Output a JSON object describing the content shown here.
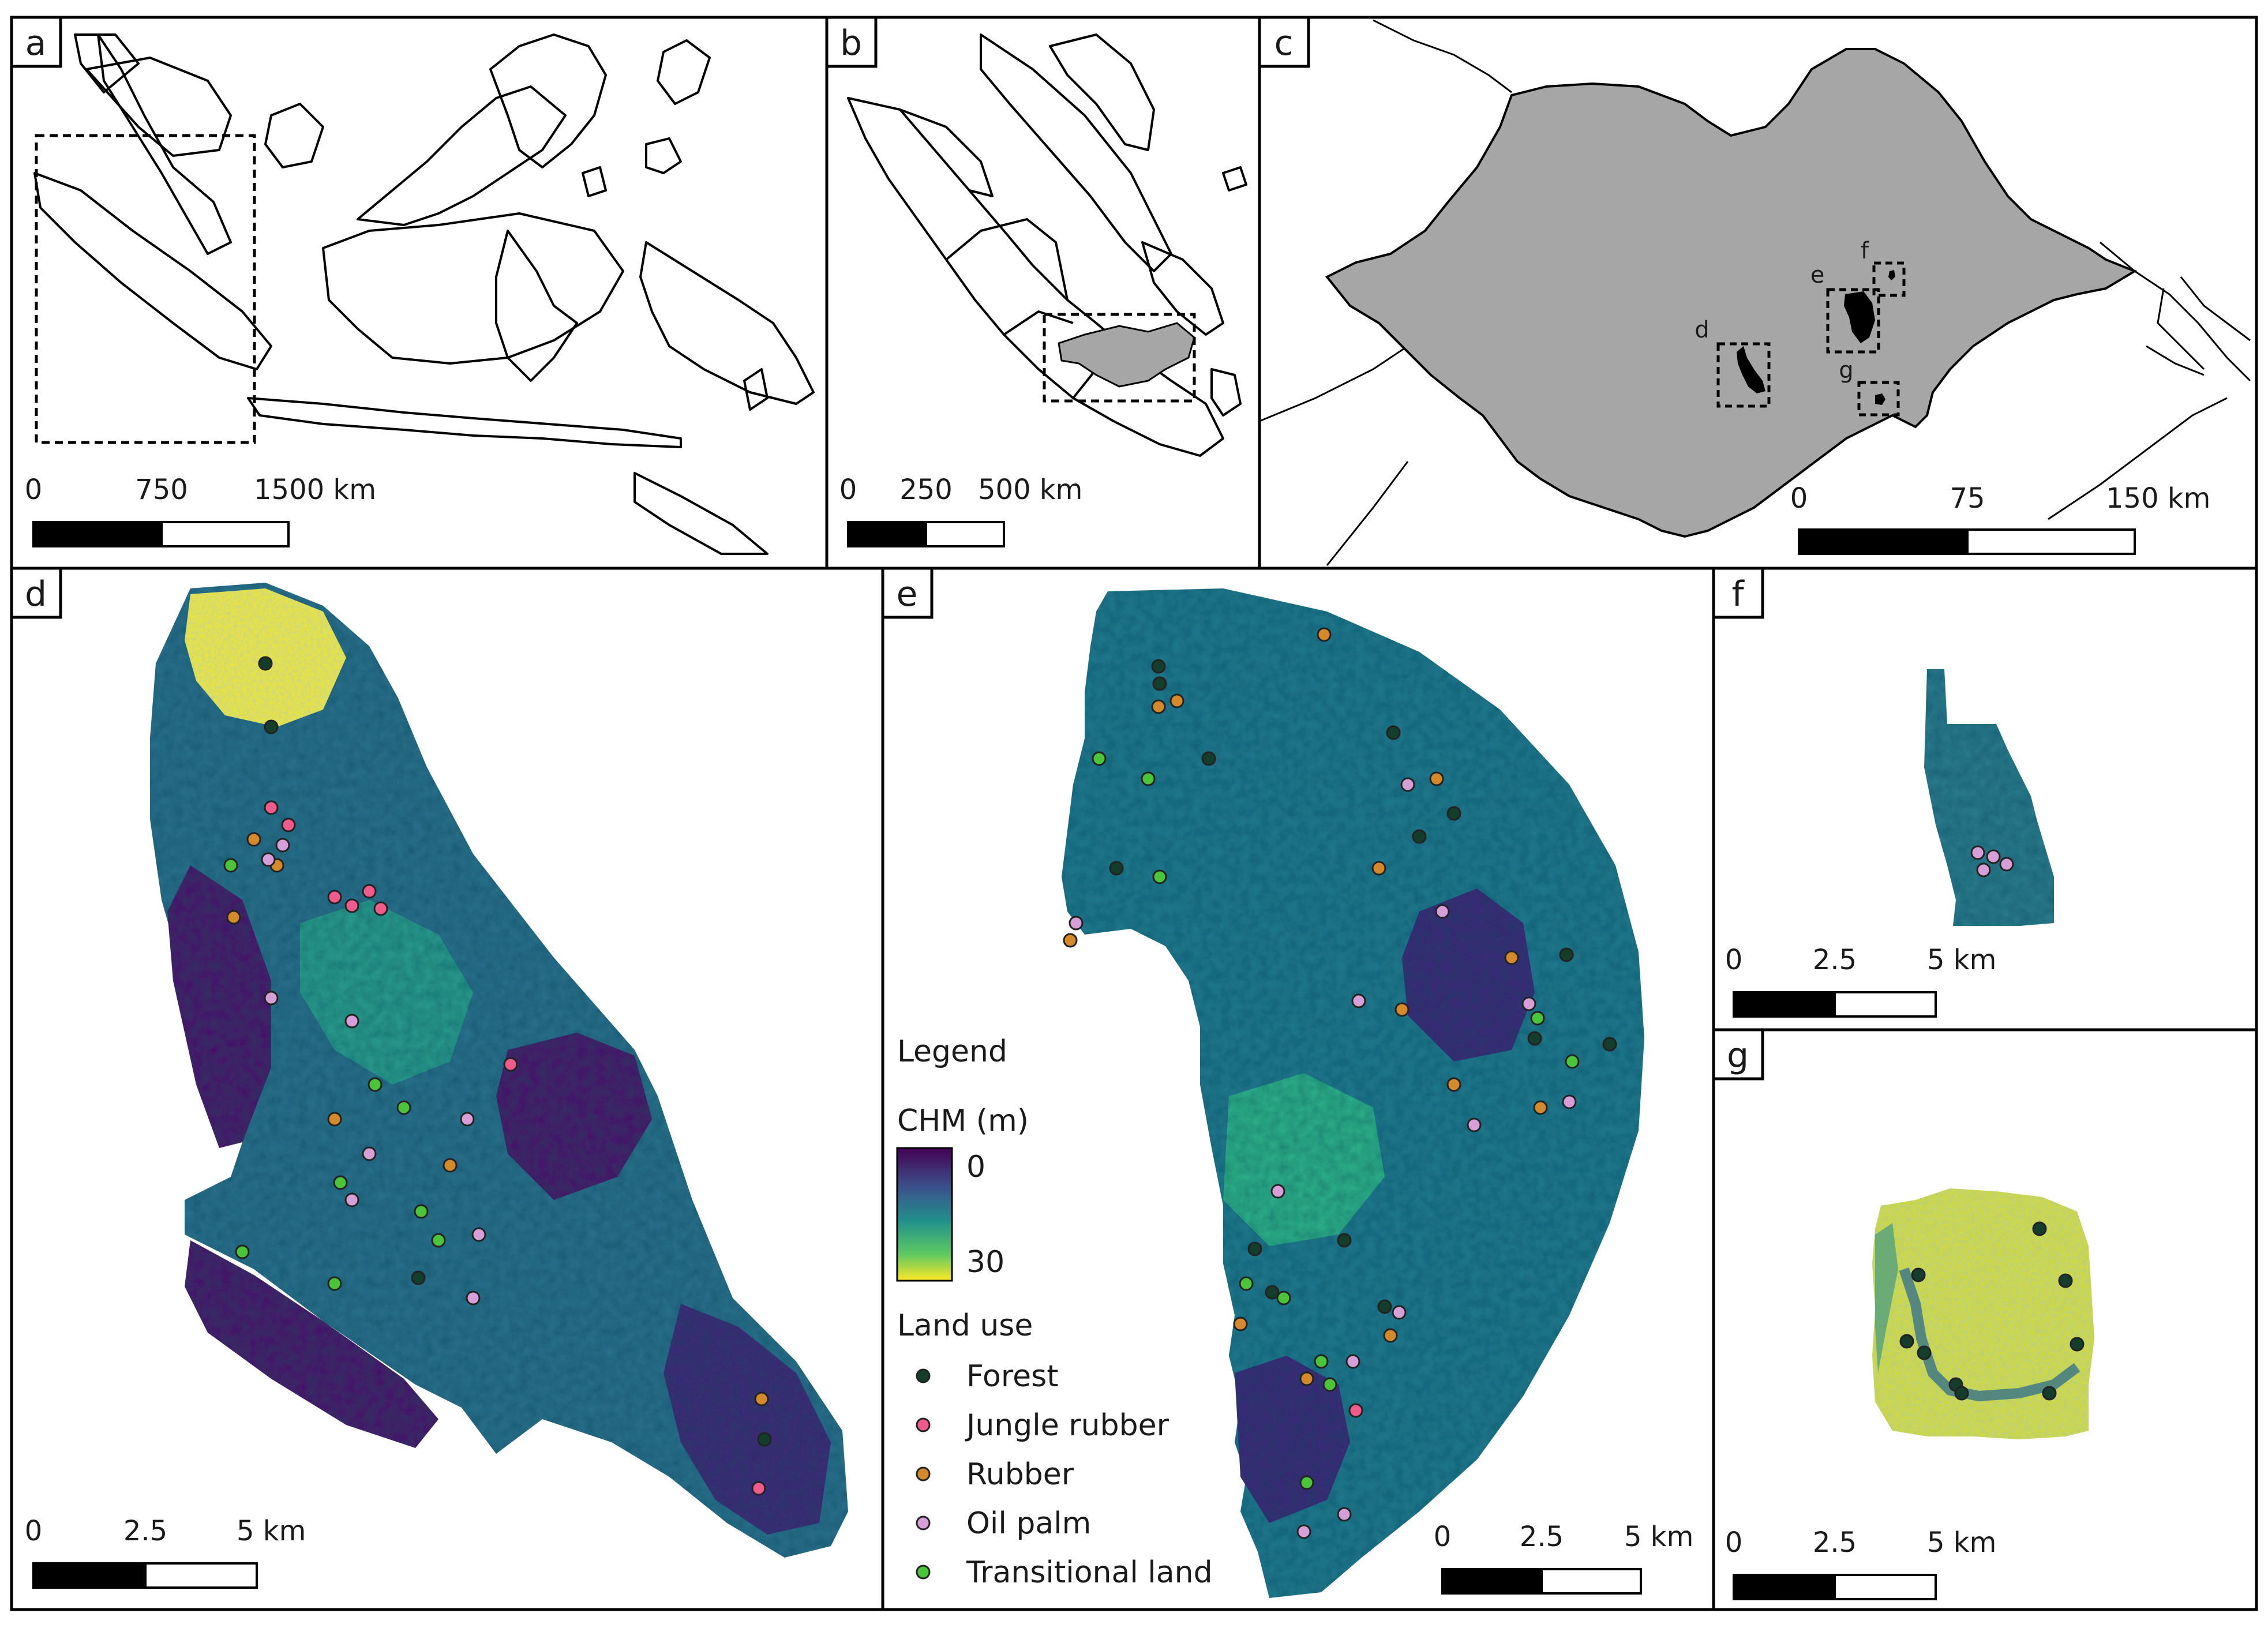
{
  "panels": {
    "a": {
      "label": "a",
      "scale": {
        "ticks": [
          "0",
          "750",
          "1500 km"
        ]
      }
    },
    "b": {
      "label": "b",
      "scale": {
        "ticks": [
          "0",
          "250",
          "500 km"
        ]
      }
    },
    "c": {
      "label": "c",
      "scale": {
        "ticks": [
          "0",
          "75",
          "150 km"
        ]
      },
      "site_labels": [
        "d",
        "e",
        "f",
        "g"
      ]
    },
    "d": {
      "label": "d",
      "scale": {
        "ticks": [
          "0",
          "2.5",
          "5 km"
        ]
      }
    },
    "e": {
      "label": "e",
      "scale": {
        "ticks": [
          "0",
          "2.5",
          "5 km"
        ]
      }
    },
    "f": {
      "label": "f",
      "scale": {
        "ticks": [
          "0",
          "2.5",
          "5 km"
        ]
      }
    },
    "g": {
      "label": "g",
      "scale": {
        "ticks": [
          "0",
          "2.5",
          "5 km"
        ]
      }
    }
  },
  "legend": {
    "title": "Legend",
    "chm_title": "CHM (m)",
    "chm_min": "0",
    "chm_max": "30",
    "chm_colors": [
      "#440154",
      "#3b528b",
      "#21918c",
      "#5ec962",
      "#fde725"
    ],
    "land_use_title": "Land use",
    "classes": [
      {
        "name": "Forest",
        "color": "#143d2c"
      },
      {
        "name": "Jungle rubber",
        "color": "#ef5b8a"
      },
      {
        "name": "Rubber",
        "color": "#d4892a"
      },
      {
        "name": "Oil palm",
        "color": "#d79fd7"
      },
      {
        "name": "Transitional land",
        "color": "#4cc43a"
      }
    ]
  },
  "colors": {
    "region_fill": "#a6a6a6",
    "site_fill": "#000000",
    "frame": "#000000"
  }
}
